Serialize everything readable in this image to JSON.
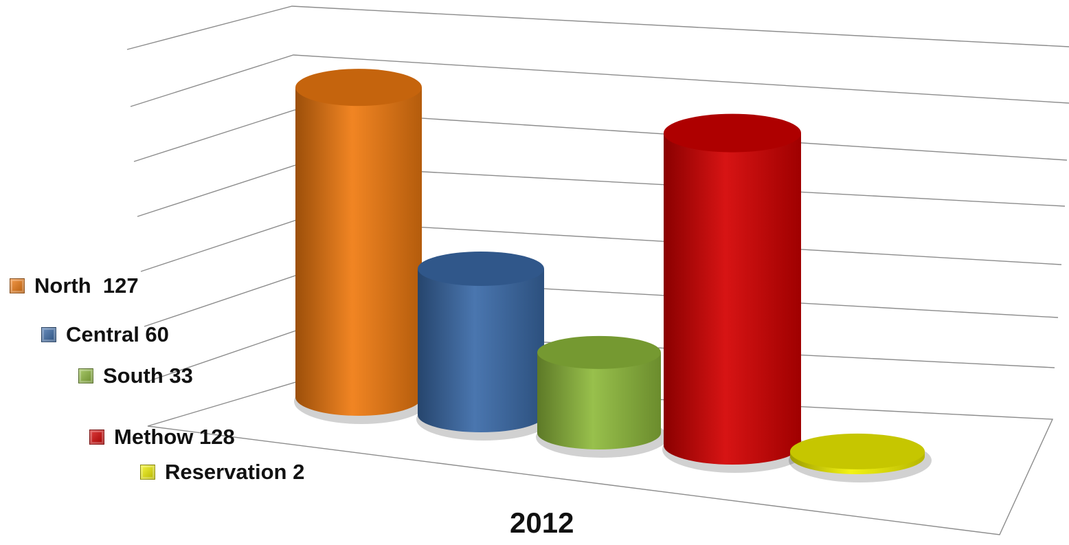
{
  "chart_data": {
    "type": "bar",
    "style": "3d-cylinder",
    "title": "",
    "categories": [
      "2012"
    ],
    "series": [
      {
        "name": "North  127",
        "value": 127,
        "color": "#f07a10"
      },
      {
        "name": "Central 60",
        "value": 60,
        "color": "#3a6aa8"
      },
      {
        "name": "South 33",
        "value": 33,
        "color": "#8fba3c"
      },
      {
        "name": "Methow 128",
        "value": 128,
        "color": "#d40000"
      },
      {
        "name": "Reservation 2",
        "value": 2,
        "color": "#f2f200"
      }
    ],
    "ylim": [
      0,
      140
    ],
    "grid": true,
    "legend_position": "left"
  }
}
